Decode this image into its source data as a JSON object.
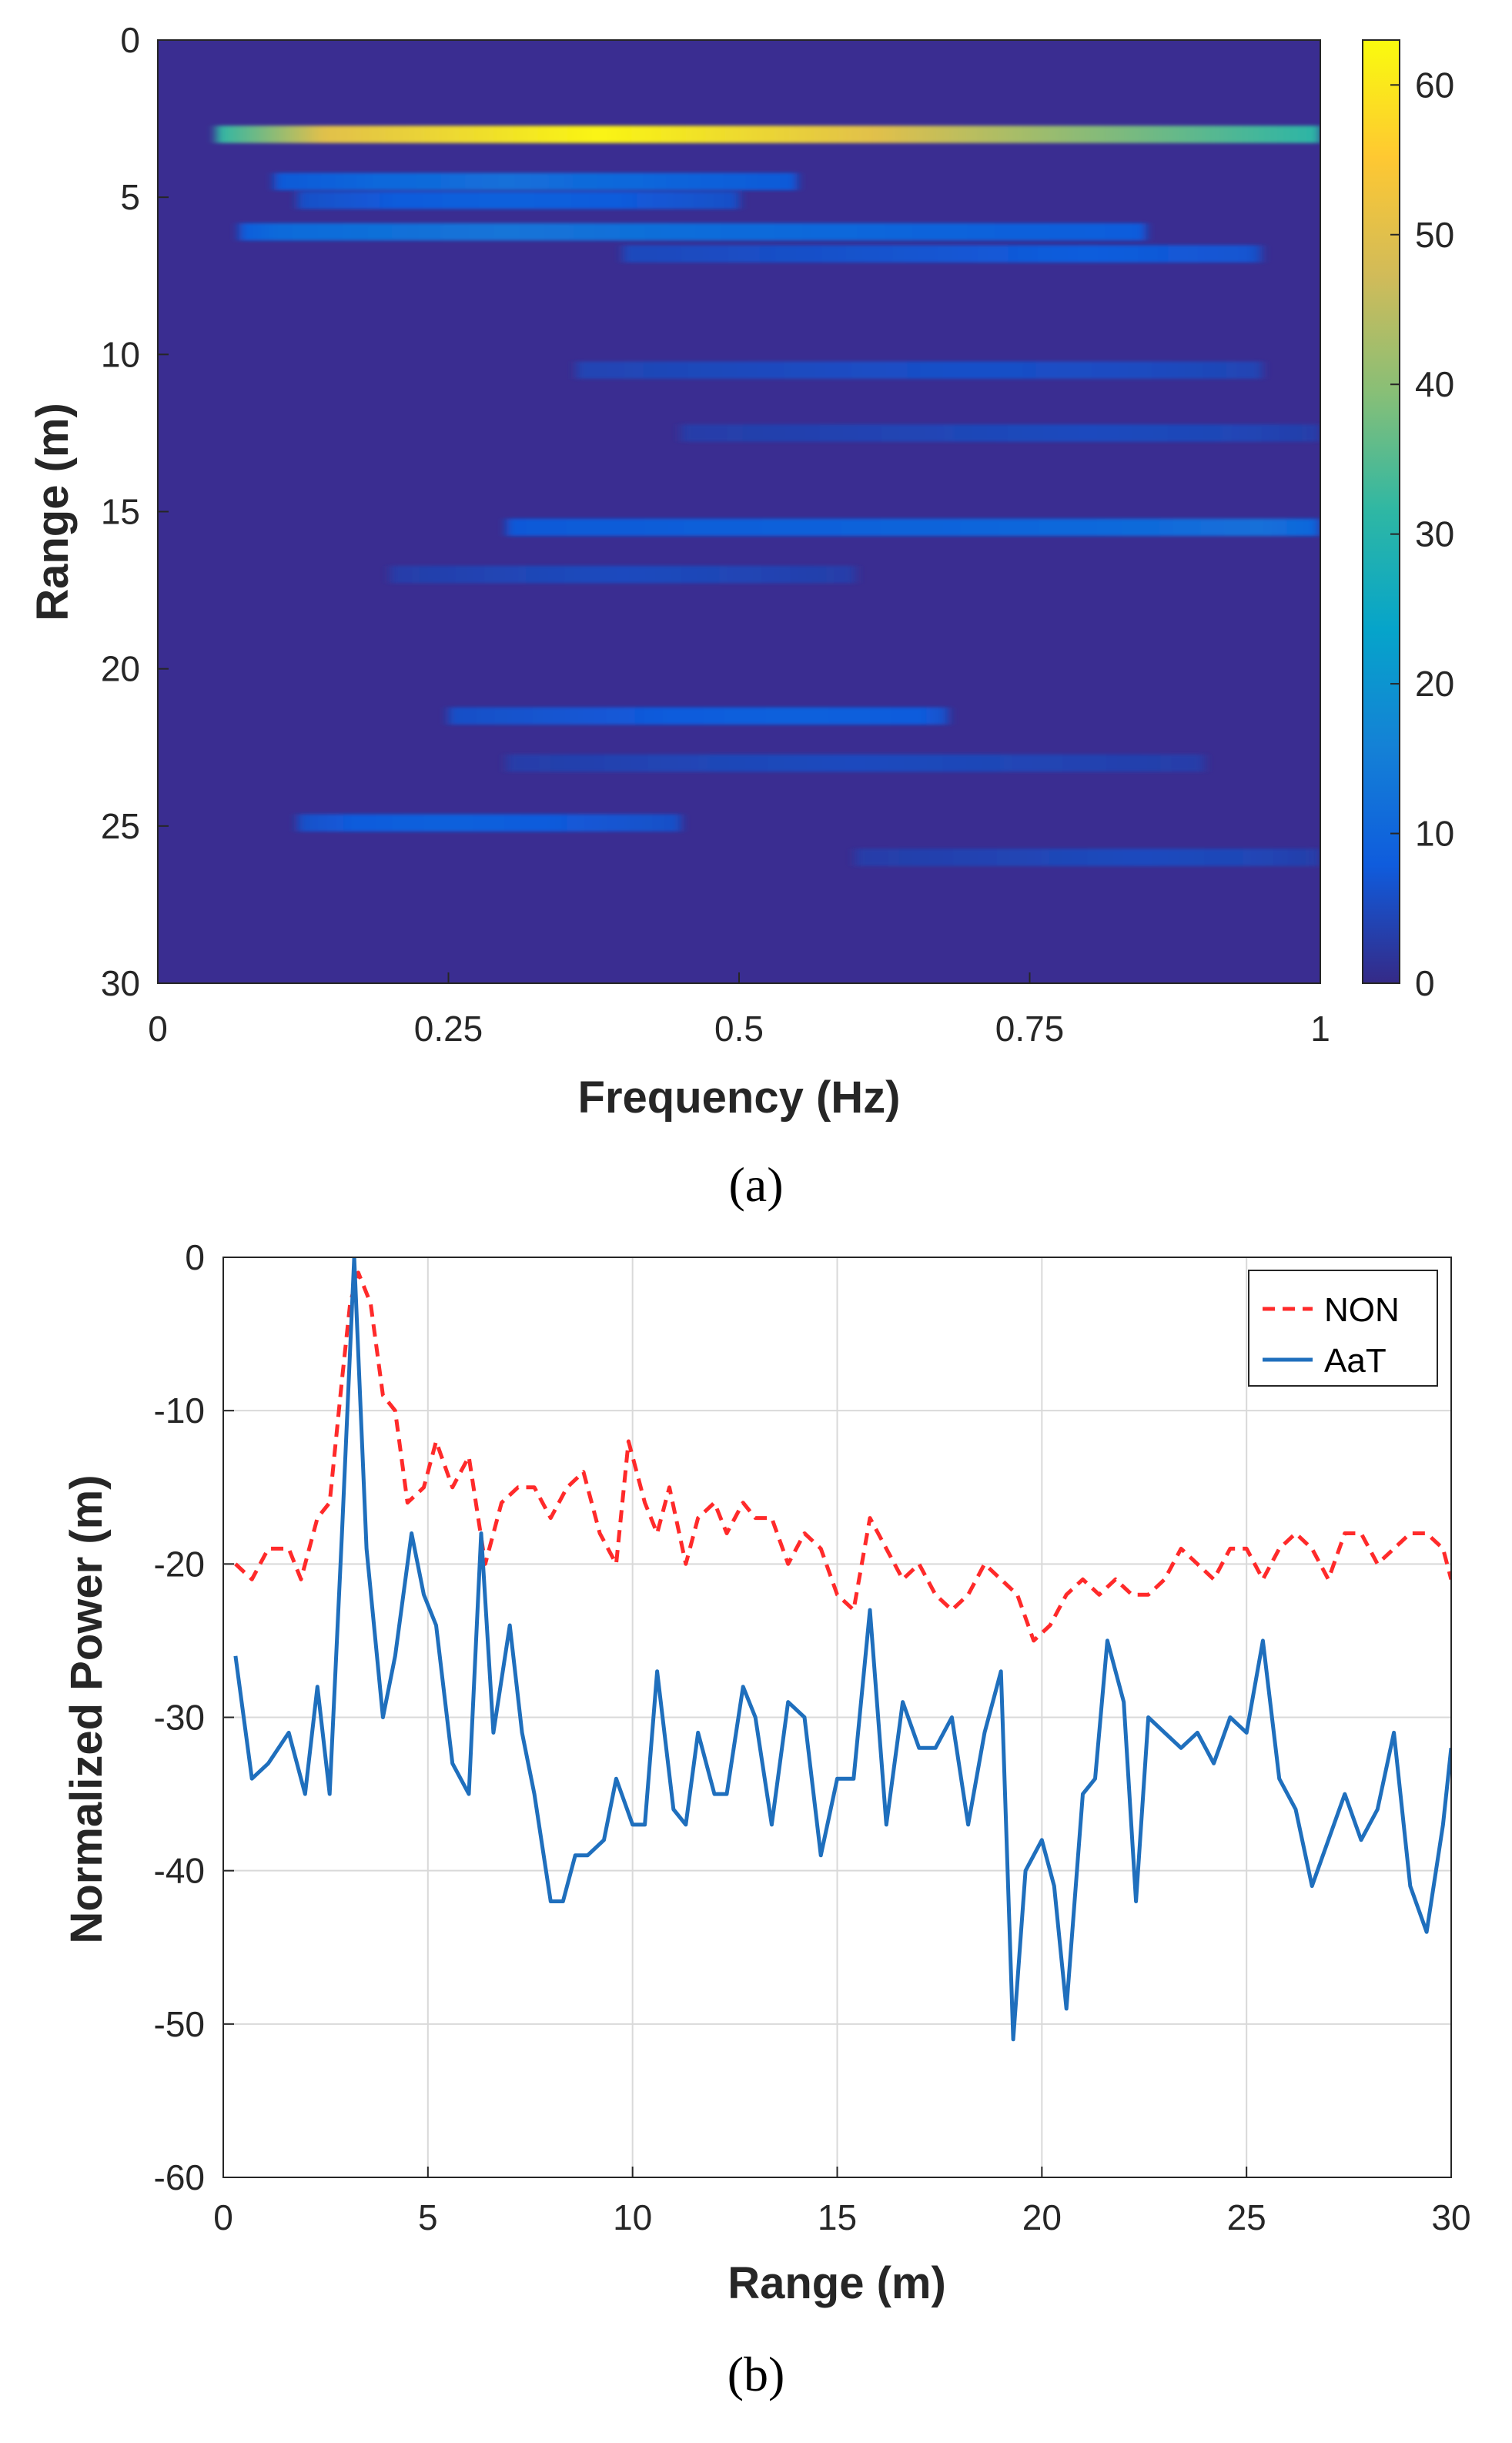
{
  "colors": {
    "axis": "#262626",
    "grid": "#d9d9d9",
    "non_line": "#ff2a2a",
    "aat_line": "#1f6fbd",
    "heatmap_bg": "#3a2d91"
  },
  "chart_data": [
    {
      "panel": "(a)",
      "type": "heatmap",
      "xlabel": "Frequency (Hz)",
      "ylabel": "Range (m)",
      "xlim": [
        0,
        1
      ],
      "ylim": [
        0,
        30
      ],
      "x_ticks": [
        "0",
        "0.25",
        "0.5",
        "0.75",
        "1"
      ],
      "y_ticks": [
        "0",
        "5",
        "10",
        "15",
        "20",
        "25",
        "30"
      ],
      "colorbar": {
        "range": [
          0,
          63
        ],
        "ticks": [
          "0",
          "10",
          "20",
          "30",
          "40",
          "50",
          "60"
        ],
        "colormap": "parula"
      },
      "bands": [
        {
          "range": 3.0,
          "f_start": 0.05,
          "f_end": 1.0,
          "f_peak": 0.38,
          "peak": 62,
          "base": 14
        },
        {
          "range": 4.5,
          "f_start": 0.1,
          "f_end": 0.55,
          "f_peak": 0.3,
          "peak": 12,
          "base": 5
        },
        {
          "range": 5.1,
          "f_start": 0.12,
          "f_end": 0.5,
          "f_peak": 0.3,
          "peak": 9,
          "base": 4
        },
        {
          "range": 6.1,
          "f_start": 0.07,
          "f_end": 0.85,
          "f_peak": 0.3,
          "peak": 13,
          "base": 5
        },
        {
          "range": 6.8,
          "f_start": 0.4,
          "f_end": 0.95,
          "f_peak": 0.8,
          "peak": 8,
          "base": 3
        },
        {
          "range": 10.5,
          "f_start": 0.36,
          "f_end": 0.95,
          "f_peak": 0.7,
          "peak": 6,
          "base": 3
        },
        {
          "range": 12.5,
          "f_start": 0.45,
          "f_end": 1.0,
          "f_peak": 0.8,
          "peak": 5,
          "base": 2
        },
        {
          "range": 15.5,
          "f_start": 0.3,
          "f_end": 1.0,
          "f_peak": 0.95,
          "peak": 12,
          "base": 5
        },
        {
          "range": 17.0,
          "f_start": 0.2,
          "f_end": 0.6,
          "f_peak": 0.4,
          "peak": 5,
          "base": 2
        },
        {
          "range": 21.5,
          "f_start": 0.25,
          "f_end": 0.68,
          "f_peak": 0.55,
          "peak": 9,
          "base": 4
        },
        {
          "range": 23.0,
          "f_start": 0.3,
          "f_end": 0.9,
          "f_peak": 0.6,
          "peak": 5,
          "base": 2
        },
        {
          "range": 24.9,
          "f_start": 0.12,
          "f_end": 0.45,
          "f_peak": 0.25,
          "peak": 9,
          "base": 4
        },
        {
          "range": 26.0,
          "f_start": 0.6,
          "f_end": 1.0,
          "f_peak": 0.85,
          "peak": 5,
          "base": 2
        }
      ]
    },
    {
      "panel": "(b)",
      "type": "line",
      "xlabel": "Range (m)",
      "ylabel": "Normalized Power (m)",
      "xlim": [
        0,
        30
      ],
      "ylim": [
        -60,
        0
      ],
      "x_ticks": [
        "0",
        "5",
        "10",
        "15",
        "20",
        "25",
        "30"
      ],
      "y_ticks": [
        "0",
        "-10",
        "-20",
        "-30",
        "-40",
        "-50",
        "-60"
      ],
      "grid": true,
      "legend_position": "top-right",
      "series": [
        {
          "name": "NON",
          "style": "dashed",
          "x": [
            0.3,
            0.7,
            1.1,
            1.6,
            1.9,
            2.3,
            2.6,
            2.9,
            3.1,
            3.3,
            3.6,
            3.9,
            4.2,
            4.5,
            4.9,
            5.2,
            5.6,
            6.0,
            6.4,
            6.8,
            7.2,
            7.6,
            8.0,
            8.4,
            8.8,
            9.2,
            9.6,
            9.9,
            10.3,
            10.6,
            10.9,
            11.3,
            11.6,
            12.0,
            12.3,
            12.7,
            13.0,
            13.4,
            13.8,
            14.2,
            14.6,
            15.0,
            15.4,
            15.8,
            16.2,
            16.6,
            17.0,
            17.4,
            17.8,
            18.2,
            18.6,
            19.0,
            19.4,
            19.8,
            20.2,
            20.6,
            21.0,
            21.4,
            21.8,
            22.2,
            22.6,
            23.0,
            23.4,
            23.8,
            24.2,
            24.6,
            25.0,
            25.4,
            25.8,
            26.2,
            26.6,
            27.0,
            27.4,
            27.8,
            28.2,
            28.6,
            29.0,
            29.4,
            29.8,
            30.0
          ],
          "y": [
            -20,
            -21,
            -19,
            -19,
            -21,
            -17,
            -16,
            -8,
            -3,
            -1,
            -3,
            -9,
            -10,
            -16,
            -15,
            -12,
            -15,
            -13,
            -20,
            -16,
            -15,
            -15,
            -17,
            -15,
            -14,
            -18,
            -20,
            -12,
            -16,
            -18,
            -15,
            -20,
            -17,
            -16,
            -18,
            -16,
            -17,
            -17,
            -20,
            -18,
            -19,
            -22,
            -23,
            -17,
            -19,
            -21,
            -20,
            -22,
            -23,
            -22,
            -20,
            -21,
            -22,
            -25,
            -24,
            -22,
            -21,
            -22,
            -21,
            -22,
            -22,
            -21,
            -19,
            -20,
            -21,
            -19,
            -19,
            -21,
            -19,
            -18,
            -19,
            -21,
            -18,
            -18,
            -20,
            -19,
            -18,
            -18,
            -19,
            -21
          ]
        },
        {
          "name": "AaT",
          "style": "solid",
          "x": [
            0.3,
            0.7,
            1.1,
            1.6,
            2.0,
            2.3,
            2.6,
            2.9,
            3.2,
            3.5,
            3.9,
            4.2,
            4.6,
            4.9,
            5.2,
            5.6,
            6.0,
            6.3,
            6.6,
            7.0,
            7.3,
            7.6,
            8.0,
            8.3,
            8.6,
            8.9,
            9.3,
            9.6,
            10.0,
            10.3,
            10.6,
            11.0,
            11.3,
            11.6,
            12.0,
            12.3,
            12.7,
            13.0,
            13.4,
            13.8,
            14.2,
            14.6,
            15.0,
            15.4,
            15.8,
            16.2,
            16.6,
            17.0,
            17.4,
            17.8,
            18.2,
            18.6,
            19.0,
            19.3,
            19.6,
            20.0,
            20.3,
            20.6,
            21.0,
            21.3,
            21.6,
            22.0,
            22.3,
            22.6,
            23.0,
            23.4,
            23.8,
            24.2,
            24.6,
            25.0,
            25.4,
            25.8,
            26.2,
            26.6,
            27.0,
            27.4,
            27.8,
            28.2,
            28.6,
            29.0,
            29.4,
            29.8,
            30.0
          ],
          "y": [
            -26,
            -34,
            -33,
            -31,
            -35,
            -28,
            -35,
            -18,
            0,
            -19,
            -30,
            -26,
            -18,
            -22,
            -24,
            -33,
            -35,
            -18,
            -31,
            -24,
            -31,
            -35,
            -42,
            -42,
            -39,
            -39,
            -38,
            -34,
            -37,
            -37,
            -27,
            -36,
            -37,
            -31,
            -35,
            -35,
            -28,
            -30,
            -37,
            -29,
            -30,
            -39,
            -34,
            -34,
            -23,
            -37,
            -29,
            -32,
            -32,
            -30,
            -37,
            -31,
            -27,
            -51,
            -40,
            -38,
            -41,
            -49,
            -35,
            -34,
            -25,
            -29,
            -42,
            -30,
            -31,
            -32,
            -31,
            -33,
            -30,
            -31,
            -25,
            -34,
            -36,
            -41,
            -38,
            -35,
            -38,
            -36,
            -31,
            -41,
            -44,
            -37,
            -32
          ]
        }
      ]
    }
  ]
}
